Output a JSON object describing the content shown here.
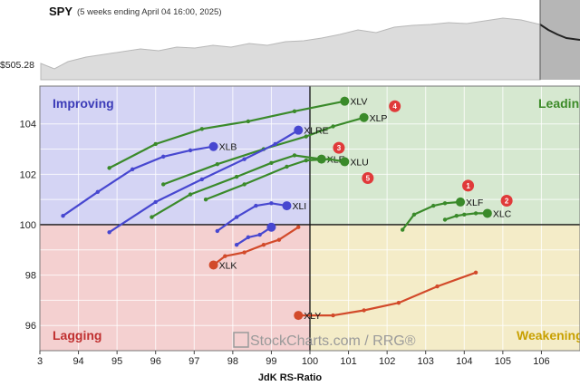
{
  "header": {
    "symbol": "SPY",
    "subtitle": "(5 weeks ending April 04 16:00, 2025)",
    "price_label": "$505.28"
  },
  "watermark": "StockCharts.com / RRG®",
  "colors": {
    "improving": "#d4d4f4",
    "leading": "#d6e8d0",
    "lagging": "#f4d0d0",
    "weakening": "#f4ecc8",
    "blue": "#4747d0",
    "green": "#3a8a2a",
    "red": "#d24a2a"
  },
  "chart_data": {
    "type": "scatter",
    "title": "",
    "xlabel": "JdK RS-Ratio",
    "ylabel": "",
    "xlim": [
      93,
      107
    ],
    "ylim": [
      95,
      105.5
    ],
    "x_ticks": [
      "3",
      "94",
      "95",
      "96",
      "97",
      "98",
      "99",
      "100",
      "101",
      "102",
      "103",
      "104",
      "105",
      "106"
    ],
    "y_ticks": [
      "96",
      "98",
      "100",
      "102",
      "104"
    ],
    "center": [
      100,
      100
    ],
    "grid": true,
    "quadrants": {
      "improving": "Improving",
      "leading": "Leading",
      "lagging": "Lagging",
      "weakening": "Weakening"
    },
    "series": [
      {
        "name": "XLV",
        "color": "green",
        "x": [
          94.8,
          96.0,
          97.2,
          98.4,
          99.6,
          100.9
        ],
        "y": [
          102.25,
          103.2,
          103.8,
          104.1,
          104.5,
          104.9
        ]
      },
      {
        "name": "XLP",
        "color": "green",
        "x": [
          96.2,
          97.6,
          98.8,
          99.9,
          100.6,
          101.4
        ],
        "y": [
          101.6,
          102.4,
          103.0,
          103.5,
          103.9,
          104.25
        ]
      },
      {
        "name": "XLRE",
        "color": "blue",
        "x": [
          94.8,
          96.0,
          97.2,
          98.3,
          99.1,
          99.7
        ],
        "y": [
          99.7,
          100.9,
          101.8,
          102.6,
          103.2,
          103.75
        ]
      },
      {
        "name": "XLB",
        "color": "blue",
        "x": [
          93.6,
          94.5,
          95.4,
          96.2,
          96.9,
          97.5
        ],
        "y": [
          100.35,
          101.3,
          102.2,
          102.7,
          102.95,
          103.1
        ]
      },
      {
        "name": "XLE",
        "color": "green",
        "x": [
          95.9,
          96.9,
          98.1,
          99.0,
          99.6,
          100.3
        ],
        "y": [
          100.3,
          101.2,
          101.9,
          102.45,
          102.75,
          102.6
        ]
      },
      {
        "name": "XLU",
        "color": "green",
        "x": [
          97.3,
          98.3,
          99.4,
          99.9,
          100.5,
          100.9
        ],
        "y": [
          101.0,
          101.6,
          102.3,
          102.55,
          102.6,
          102.5
        ]
      },
      {
        "name": "XLI",
        "color": "blue",
        "x": [
          97.6,
          98.1,
          98.6,
          99.0,
          99.4
        ],
        "y": [
          99.75,
          100.3,
          100.75,
          100.85,
          100.75
        ]
      },
      {
        "name": "XLF",
        "color": "green",
        "x": [
          102.4,
          102.7,
          103.2,
          103.5,
          103.9
        ],
        "y": [
          99.8,
          100.4,
          100.75,
          100.85,
          100.9
        ]
      },
      {
        "name": "XLC",
        "color": "green",
        "x": [
          103.5,
          103.8,
          104.0,
          104.3,
          104.6
        ],
        "y": [
          100.2,
          100.35,
          100.4,
          100.45,
          100.45
        ]
      },
      {
        "name": "XLK",
        "color": "red",
        "x": [
          99.7,
          99.2,
          98.8,
          98.3,
          97.8,
          97.5
        ],
        "y": [
          99.9,
          99.4,
          99.2,
          98.9,
          98.75,
          98.4
        ]
      },
      {
        "name": "XLY",
        "color": "red",
        "x": [
          104.3,
          103.3,
          102.3,
          101.4,
          100.6,
          99.7
        ],
        "y": [
          98.1,
          97.55,
          96.9,
          96.6,
          96.4,
          96.4
        ]
      },
      {
        "name": "",
        "color": "blue",
        "x": [
          98.1,
          98.4,
          98.7,
          99.0
        ],
        "y": [
          99.2,
          99.5,
          99.6,
          99.9
        ]
      }
    ],
    "badges": [
      {
        "num": "1",
        "x": 104.1,
        "y": 101.55
      },
      {
        "num": "2",
        "x": 105.1,
        "y": 100.95
      },
      {
        "num": "3",
        "x": 100.75,
        "y": 103.05
      },
      {
        "num": "4",
        "x": 102.2,
        "y": 104.7
      },
      {
        "num": "5",
        "x": 101.5,
        "y": 101.85
      }
    ]
  }
}
